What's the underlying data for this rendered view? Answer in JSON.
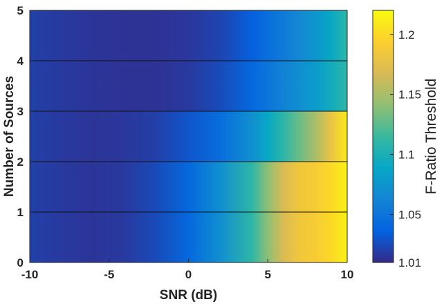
{
  "chart_data": {
    "type": "heatmap",
    "title": "",
    "xlabel": "SNR (dB)",
    "ylabel": "Number of Sources",
    "xlim": [
      -10,
      10
    ],
    "ylim": [
      0,
      5
    ],
    "x_ticks": [
      -10,
      -5,
      0,
      5,
      10
    ],
    "x_tick_labels": [
      "-10",
      "-5",
      "0",
      "5",
      "10"
    ],
    "y_ticks": [
      0,
      1,
      2,
      3,
      4,
      5
    ],
    "y_tick_labels": [
      "0",
      "1",
      "2",
      "3",
      "4",
      "5"
    ],
    "colorbar": {
      "label": "F-Ratio Threshold",
      "range": [
        1.01,
        1.22
      ],
      "ticks": [
        1.01,
        1.05,
        1.1,
        1.15,
        1.2
      ],
      "tick_labels": [
        "1.01",
        "1.05",
        "1.1",
        "1.15",
        "1.2"
      ],
      "colormap": "parula",
      "colormap_stops": [
        "#352a87",
        "#0363e1",
        "#1485d4",
        "#06a7c6",
        "#38b99e",
        "#92bf73",
        "#d9ba56",
        "#fcce2e",
        "#f9fb0e"
      ]
    },
    "snr_values": [
      -10,
      -8,
      -6,
      -4,
      -2,
      0,
      2,
      4,
      5,
      6,
      7,
      8,
      9,
      10
    ],
    "sources": [
      1,
      2,
      3,
      4,
      5
    ],
    "series": [
      {
        "name": "1",
        "values": [
          1.02,
          1.017,
          1.015,
          1.017,
          1.025,
          1.04,
          1.07,
          1.11,
          1.14,
          1.17,
          1.185,
          1.19,
          1.2,
          1.215
        ]
      },
      {
        "name": "2",
        "values": [
          1.02,
          1.017,
          1.015,
          1.017,
          1.025,
          1.04,
          1.07,
          1.11,
          1.14,
          1.17,
          1.185,
          1.19,
          1.2,
          1.215
        ]
      },
      {
        "name": "3",
        "values": [
          1.02,
          1.017,
          1.015,
          1.016,
          1.02,
          1.03,
          1.045,
          1.07,
          1.09,
          1.11,
          1.13,
          1.15,
          1.18,
          1.21
        ]
      },
      {
        "name": "4",
        "values": [
          1.02,
          1.017,
          1.015,
          1.014,
          1.014,
          1.017,
          1.025,
          1.04,
          1.05,
          1.06,
          1.07,
          1.08,
          1.095,
          1.11
        ]
      },
      {
        "name": "5",
        "values": [
          1.02,
          1.017,
          1.015,
          1.014,
          1.014,
          1.016,
          1.022,
          1.035,
          1.045,
          1.055,
          1.065,
          1.075,
          1.09,
          1.11
        ]
      }
    ]
  }
}
